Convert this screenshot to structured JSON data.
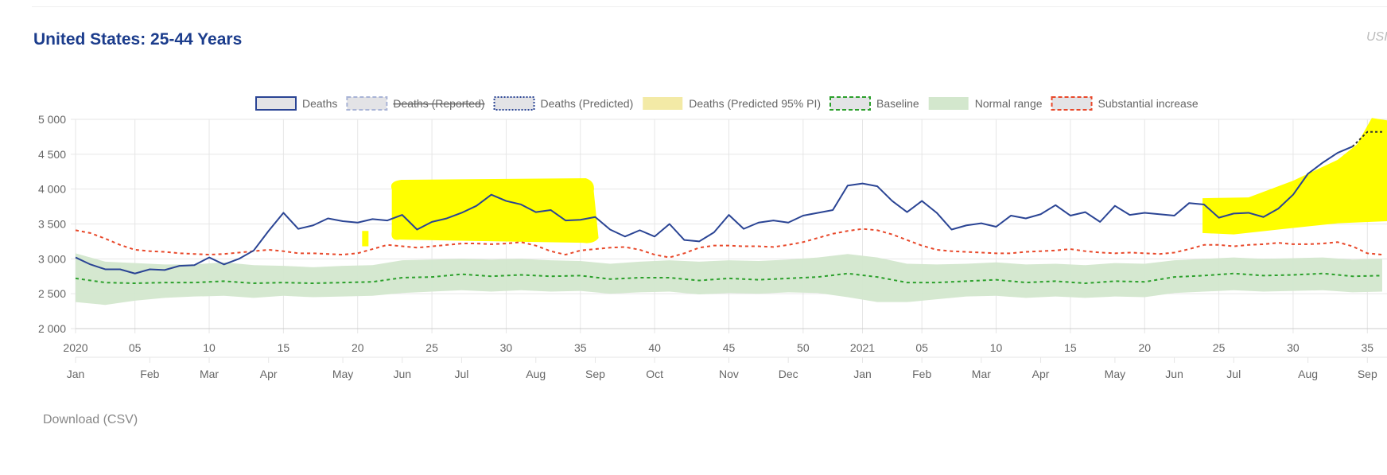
{
  "title": "United States: 25-44 Years",
  "corner_text": "USI",
  "download_label": "Download (CSV)",
  "chart_data": {
    "type": "line",
    "legend_position": "top-center",
    "grid": true,
    "ylim": [
      2000,
      5000
    ],
    "y_ticks": [
      "5 000",
      "4 500",
      "4 000",
      "3 500",
      "3 000",
      "2 500",
      "2 000"
    ],
    "x_week_ticks": [
      {
        "label": "2020",
        "week": 1
      },
      {
        "label": "05",
        "week": 5
      },
      {
        "label": "10",
        "week": 10
      },
      {
        "label": "15",
        "week": 15
      },
      {
        "label": "20",
        "week": 20
      },
      {
        "label": "25",
        "week": 25
      },
      {
        "label": "30",
        "week": 30
      },
      {
        "label": "35",
        "week": 35
      },
      {
        "label": "40",
        "week": 40
      },
      {
        "label": "45",
        "week": 45
      },
      {
        "label": "50",
        "week": 50
      },
      {
        "label": "2021",
        "week": 54
      },
      {
        "label": "05",
        "week": 58
      },
      {
        "label": "10",
        "week": 63
      },
      {
        "label": "15",
        "week": 68
      },
      {
        "label": "20",
        "week": 73
      },
      {
        "label": "25",
        "week": 78
      },
      {
        "label": "30",
        "week": 83
      },
      {
        "label": "35",
        "week": 88
      }
    ],
    "x_month_ticks": [
      {
        "label": "Jan",
        "week": 1
      },
      {
        "label": "Feb",
        "week": 6
      },
      {
        "label": "Mar",
        "week": 10
      },
      {
        "label": "Apr",
        "week": 14
      },
      {
        "label": "May",
        "week": 19
      },
      {
        "label": "Jun",
        "week": 23
      },
      {
        "label": "Jul",
        "week": 27
      },
      {
        "label": "Aug",
        "week": 32
      },
      {
        "label": "Sep",
        "week": 36
      },
      {
        "label": "Oct",
        "week": 40
      },
      {
        "label": "Nov",
        "week": 45
      },
      {
        "label": "Dec",
        "week": 49
      },
      {
        "label": "Jan",
        "week": 54
      },
      {
        "label": "Feb",
        "week": 58
      },
      {
        "label": "Mar",
        "week": 62
      },
      {
        "label": "Apr",
        "week": 66
      },
      {
        "label": "May",
        "week": 71
      },
      {
        "label": "Jun",
        "week": 75
      },
      {
        "label": "Jul",
        "week": 79
      },
      {
        "label": "Aug",
        "week": 84
      },
      {
        "label": "Sep",
        "week": 88
      }
    ],
    "legend": [
      {
        "label": "Deaths",
        "style": "solid-box",
        "color": "#2a4494",
        "fill": "#e3e3e6",
        "strike": false
      },
      {
        "label": "Deaths (Reported)",
        "style": "dashed-box",
        "color": "#a9b4d6",
        "fill": "#e3e3e6",
        "strike": true
      },
      {
        "label": "Deaths (Predicted)",
        "style": "dotted-box",
        "color": "#2a4494",
        "fill": "#e3e3e6",
        "strike": false
      },
      {
        "label": "Deaths (Predicted 95% PI)",
        "style": "fill",
        "color": "#f3eaa6",
        "fill": "#f3eaa6",
        "strike": false
      },
      {
        "label": "Baseline",
        "style": "dashed-box",
        "color": "#2ca02c",
        "fill": "#e3e3e6",
        "strike": false
      },
      {
        "label": "Normal range",
        "style": "fill",
        "color": "#d3e7cd",
        "fill": "#d3e7cd",
        "strike": false
      },
      {
        "label": "Substantial increase",
        "style": "dashed-box",
        "color": "#e8482a",
        "fill": "#e3e3e6",
        "strike": false
      }
    ],
    "colors": {
      "deaths": "#2a4494",
      "predicted": "#333333",
      "baseline": "#2ca02c",
      "normal_range": "#d3e7cd",
      "substantial_increase": "#e8482a",
      "highlight": "#ffff00",
      "grid": "#e6e6e6",
      "axis_text": "#666666"
    },
    "series": [
      {
        "name": "Deaths",
        "x": [
          1,
          2,
          3,
          4,
          5,
          6,
          7,
          8,
          9,
          10,
          11,
          12,
          13,
          14,
          15,
          16,
          17,
          18,
          19,
          20,
          21,
          22,
          23,
          24,
          25,
          26,
          27,
          28,
          29,
          30,
          31,
          32,
          33,
          34,
          35,
          36,
          37,
          38,
          39,
          40,
          41,
          42,
          43,
          44,
          45,
          46,
          47,
          48,
          49,
          50,
          51,
          52,
          53,
          54,
          55,
          56,
          57,
          58,
          59,
          60,
          61,
          62,
          63,
          64,
          65,
          66,
          67,
          68,
          69,
          70,
          71,
          72,
          73,
          74,
          75,
          76,
          77,
          78,
          79,
          80,
          81,
          82,
          83,
          84,
          85,
          86,
          87
        ],
        "values": [
          3020,
          2920,
          2850,
          2850,
          2790,
          2850,
          2840,
          2900,
          2910,
          3020,
          2920,
          3000,
          3120,
          3400,
          3660,
          3430,
          3480,
          3580,
          3540,
          3520,
          3570,
          3550,
          3630,
          3420,
          3530,
          3580,
          3660,
          3760,
          3920,
          3830,
          3780,
          3670,
          3700,
          3550,
          3560,
          3600,
          3420,
          3320,
          3410,
          3320,
          3500,
          3270,
          3250,
          3380,
          3630,
          3430,
          3520,
          3550,
          3520,
          3620,
          3660,
          3700,
          4050,
          4080,
          4040,
          3830,
          3670,
          3830,
          3660,
          3420,
          3480,
          3510,
          3460,
          3620,
          3580,
          3640,
          3770,
          3620,
          3670,
          3530,
          3760,
          3630,
          3660,
          3640,
          3620,
          3800,
          3780,
          3590,
          3650,
          3660,
          3600,
          3720,
          3920,
          4220,
          4380,
          4520,
          4610
        ]
      },
      {
        "name": "Deaths (Predicted)",
        "x": [
          87,
          88,
          89
        ],
        "values": [
          4610,
          4820,
          4820
        ]
      },
      {
        "name": "Baseline",
        "x": [
          1,
          3,
          5,
          7,
          9,
          11,
          13,
          15,
          17,
          19,
          21,
          23,
          25,
          27,
          29,
          31,
          33,
          35,
          37,
          39,
          41,
          43,
          45,
          47,
          49,
          51,
          53,
          55,
          57,
          59,
          61,
          63,
          65,
          67,
          69,
          71,
          73,
          75,
          77,
          79,
          81,
          83,
          85,
          87,
          89
        ],
        "values": [
          2720,
          2660,
          2650,
          2660,
          2660,
          2680,
          2650,
          2660,
          2650,
          2660,
          2670,
          2730,
          2740,
          2780,
          2750,
          2770,
          2750,
          2760,
          2710,
          2730,
          2730,
          2690,
          2720,
          2700,
          2720,
          2740,
          2790,
          2740,
          2660,
          2660,
          2680,
          2700,
          2660,
          2680,
          2650,
          2680,
          2670,
          2740,
          2760,
          2790,
          2760,
          2770,
          2790,
          2750,
          2760
        ]
      },
      {
        "name": "Substantial increase",
        "x": [
          1,
          2,
          3,
          4,
          5,
          6,
          7,
          8,
          9,
          10,
          11,
          12,
          13,
          14,
          15,
          16,
          17,
          18,
          19,
          20,
          21,
          22,
          23,
          24,
          25,
          26,
          27,
          28,
          29,
          30,
          31,
          32,
          33,
          34,
          35,
          36,
          37,
          38,
          39,
          40,
          41,
          42,
          43,
          44,
          45,
          46,
          47,
          48,
          49,
          50,
          51,
          52,
          53,
          54,
          55,
          56,
          57,
          58,
          59,
          60,
          61,
          62,
          63,
          64,
          65,
          66,
          67,
          68,
          69,
          70,
          71,
          72,
          73,
          74,
          75,
          76,
          77,
          78,
          79,
          80,
          81,
          82,
          83,
          84,
          85,
          86,
          87,
          88,
          89
        ],
        "values": [
          3410,
          3370,
          3290,
          3200,
          3130,
          3110,
          3100,
          3080,
          3070,
          3060,
          3070,
          3090,
          3110,
          3130,
          3110,
          3080,
          3080,
          3070,
          3060,
          3080,
          3140,
          3200,
          3180,
          3160,
          3180,
          3200,
          3220,
          3220,
          3210,
          3220,
          3240,
          3190,
          3110,
          3060,
          3120,
          3140,
          3160,
          3170,
          3130,
          3060,
          3020,
          3080,
          3160,
          3190,
          3190,
          3180,
          3180,
          3170,
          3200,
          3240,
          3300,
          3360,
          3400,
          3430,
          3410,
          3350,
          3270,
          3190,
          3130,
          3110,
          3100,
          3090,
          3080,
          3080,
          3100,
          3110,
          3120,
          3140,
          3110,
          3090,
          3080,
          3090,
          3080,
          3070,
          3090,
          3140,
          3200,
          3200,
          3180,
          3200,
          3210,
          3230,
          3210,
          3210,
          3220,
          3240,
          3180,
          3080,
          3060
        ]
      },
      {
        "name": "Normal range",
        "x": [
          1,
          3,
          5,
          7,
          9,
          11,
          13,
          15,
          17,
          19,
          21,
          23,
          25,
          27,
          29,
          31,
          33,
          35,
          37,
          39,
          41,
          43,
          45,
          47,
          49,
          51,
          53,
          55,
          57,
          59,
          61,
          63,
          65,
          67,
          69,
          71,
          73,
          75,
          77,
          79,
          81,
          83,
          85,
          87,
          89
        ],
        "upper": [
          3080,
          2960,
          2940,
          2920,
          2920,
          2950,
          2910,
          2900,
          2880,
          2900,
          2910,
          2980,
          2990,
          3000,
          2990,
          3000,
          2980,
          2970,
          2930,
          2960,
          2980,
          2960,
          2980,
          2970,
          2990,
          3020,
          3070,
          3020,
          2930,
          2920,
          2930,
          2950,
          2920,
          2930,
          2910,
          2940,
          2930,
          2980,
          3000,
          3020,
          3000,
          3010,
          3020,
          2990,
          3000
        ],
        "lower": [
          2380,
          2340,
          2400,
          2440,
          2460,
          2470,
          2440,
          2470,
          2450,
          2460,
          2470,
          2510,
          2530,
          2550,
          2530,
          2550,
          2530,
          2540,
          2500,
          2520,
          2530,
          2490,
          2510,
          2500,
          2520,
          2510,
          2450,
          2380,
          2380,
          2420,
          2460,
          2470,
          2440,
          2460,
          2440,
          2460,
          2450,
          2510,
          2530,
          2550,
          2530,
          2540,
          2550,
          2520,
          2530
        ]
      }
    ]
  }
}
